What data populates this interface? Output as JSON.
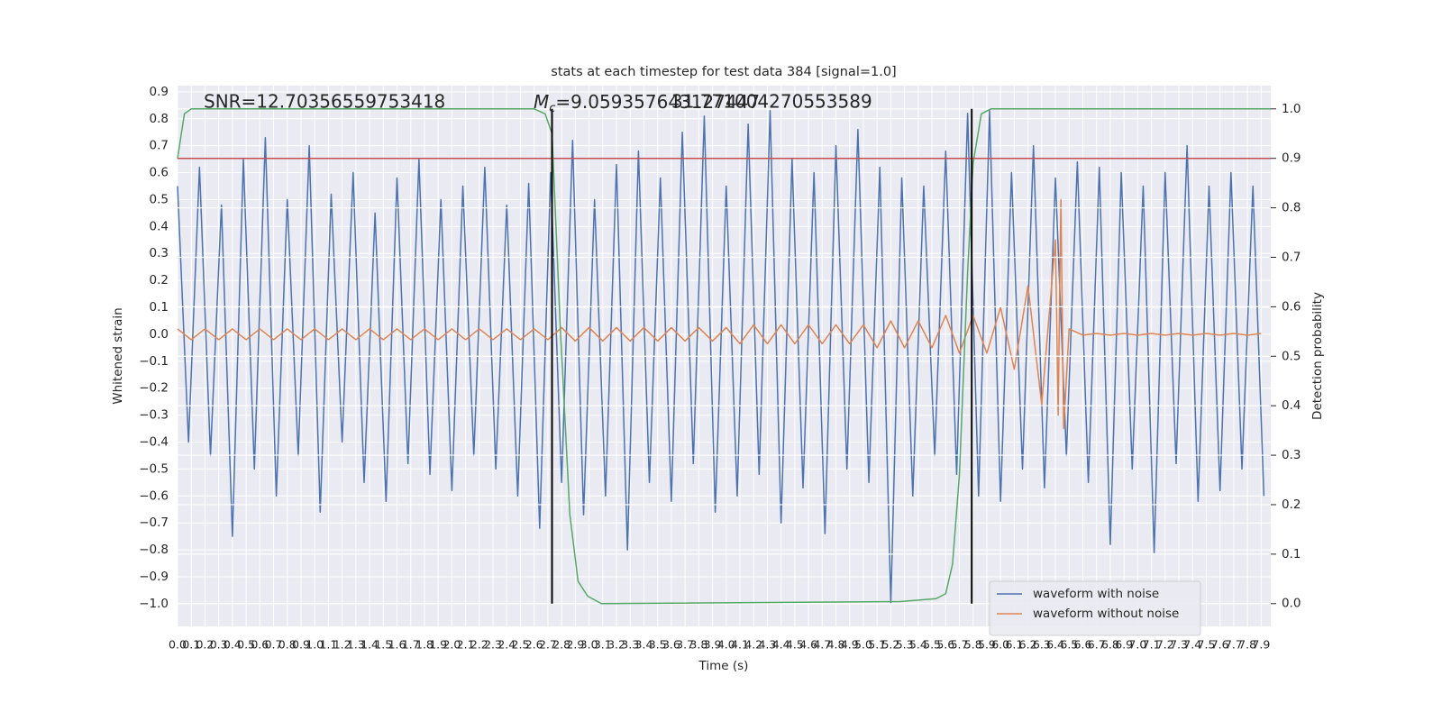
{
  "chart_data": {
    "type": "line",
    "title": "stats at each timestep for test data 384 [signal=1.0]",
    "x_label": "Time (s)",
    "y_label": "Whitened strain",
    "y2_label": "Detection probability",
    "annotations": {
      "snr": "SNR=12.70356559753418",
      "mc": {
        "symbol": "M",
        "subscript": "c",
        "text": "=9.059357643127447"
      },
      "other": "31.771004270553589"
    },
    "grid": true,
    "legend": "lower right",
    "xlim": [
      0,
      7.97
    ],
    "ylim": [
      -1.084,
      0.923
    ],
    "y2lim": [
      -0.046,
      1.047
    ],
    "xticks": [
      {
        "value": 0,
        "label": "0.0"
      },
      0.1,
      0.2,
      0.3,
      0.4,
      0.5,
      0.6,
      0.7,
      0.8,
      0.9,
      {
        "value": 1,
        "label": "1.0"
      },
      1.1,
      1.2,
      1.3,
      1.4,
      1.5,
      1.6,
      1.7,
      1.8,
      1.9,
      {
        "value": 2,
        "label": "2.0"
      },
      2.1,
      2.2,
      2.3,
      2.4,
      2.5,
      2.6,
      2.7,
      2.8,
      2.9,
      {
        "value": 3,
        "label": "3.0"
      },
      3.1,
      3.2,
      3.3,
      3.4,
      3.5,
      3.6,
      3.7,
      3.8,
      3.9,
      {
        "value": 4,
        "label": "4.0"
      },
      4.1,
      4.2,
      4.3,
      4.4,
      4.5,
      4.6,
      4.7,
      4.8,
      4.9,
      {
        "value": 5,
        "label": "5.0"
      },
      5.1,
      5.2,
      5.3,
      5.4,
      5.5,
      5.6,
      5.7,
      5.8,
      5.9,
      {
        "value": 6,
        "label": "6.0"
      },
      6.1,
      6.2,
      6.3,
      6.4,
      6.5,
      6.6,
      6.7,
      6.8,
      6.9,
      {
        "value": 7,
        "label": "7.0"
      },
      7.1,
      7.2,
      7.3,
      7.4,
      7.5,
      7.6,
      7.7,
      7.8,
      7.9
    ],
    "yticks": [
      {
        "value": -1.0,
        "label": "−1.0"
      },
      {
        "value": -0.9,
        "label": "−0.9"
      },
      {
        "value": -0.8,
        "label": "−0.8"
      },
      {
        "value": -0.7,
        "label": "−0.7"
      },
      {
        "value": -0.6,
        "label": "−0.6"
      },
      {
        "value": -0.5,
        "label": "−0.5"
      },
      {
        "value": -0.4,
        "label": "−0.4"
      },
      {
        "value": -0.3,
        "label": "−0.3"
      },
      {
        "value": -0.2,
        "label": "−0.2"
      },
      {
        "value": -0.1,
        "label": "−0.1"
      },
      {
        "value": 0,
        "label": "0.0"
      },
      0.1,
      0.2,
      0.3,
      0.4,
      0.5,
      0.6,
      0.7,
      0.8,
      0.9
    ],
    "y2ticks": [
      {
        "value": 0,
        "label": "0.0"
      },
      0.1,
      0.2,
      0.3,
      0.4,
      0.5,
      0.6,
      0.7,
      0.8,
      0.9,
      {
        "value": 1,
        "label": "1.0"
      }
    ],
    "series": [
      {
        "name": "waveform with noise",
        "color": "#4c72b0",
        "x": [
          0,
          0.08,
          0.16,
          0.24,
          0.32,
          0.4,
          0.48,
          0.56,
          0.64,
          0.72,
          0.8,
          0.88,
          0.96,
          1.04,
          1.12,
          1.2,
          1.28,
          1.36,
          1.44,
          1.52,
          1.6,
          1.68,
          1.76,
          1.84,
          1.92,
          2,
          2.08,
          2.16,
          2.24,
          2.32,
          2.4,
          2.48,
          2.56,
          2.64,
          2.72,
          2.8,
          2.88,
          2.96,
          3.04,
          3.12,
          3.2,
          3.28,
          3.36,
          3.44,
          3.52,
          3.6,
          3.68,
          3.76,
          3.84,
          3.92,
          4,
          4.08,
          4.16,
          4.24,
          4.32,
          4.4,
          4.48,
          4.56,
          4.64,
          4.72,
          4.8,
          4.88,
          4.96,
          5.04,
          5.12,
          5.2,
          5.28,
          5.36,
          5.44,
          5.52,
          5.6,
          5.68,
          5.76,
          5.84,
          5.92,
          6,
          6.08,
          6.16,
          6.24,
          6.32,
          6.4,
          6.48,
          6.56,
          6.64,
          6.72,
          6.8,
          6.88,
          6.96,
          7.04,
          7.12,
          7.2,
          7.28,
          7.36,
          7.44,
          7.52,
          7.6,
          7.68,
          7.76,
          7.84,
          7.92
        ],
        "values": [
          0.55,
          -0.4,
          0.62,
          -0.45,
          0.48,
          -0.75,
          0.65,
          -0.5,
          0.73,
          -0.6,
          0.5,
          -0.45,
          0.7,
          -0.66,
          0.52,
          -0.4,
          0.6,
          -0.55,
          0.45,
          -0.62,
          0.58,
          -0.48,
          0.65,
          -0.52,
          0.5,
          -0.58,
          0.55,
          -0.45,
          0.62,
          -0.5,
          0.48,
          -0.6,
          0.56,
          -0.72,
          0.6,
          -0.55,
          0.72,
          -0.67,
          0.5,
          -0.6,
          0.63,
          -0.8,
          0.68,
          -0.55,
          0.58,
          -0.62,
          0.75,
          -0.48,
          0.81,
          -0.66,
          0.55,
          -0.6,
          0.78,
          -0.52,
          0.83,
          -0.7,
          0.65,
          -0.57,
          0.6,
          -0.74,
          0.7,
          -0.5,
          0.76,
          -0.55,
          0.62,
          -1.0,
          0.58,
          -0.6,
          0.55,
          -0.45,
          0.68,
          -0.52,
          0.82,
          -0.6,
          0.83,
          -0.62,
          0.6,
          -0.5,
          0.7,
          -0.57,
          0.58,
          -0.45,
          0.64,
          -0.55,
          0.62,
          -0.78,
          0.6,
          -0.5,
          0.55,
          -0.81,
          0.6,
          -0.48,
          0.7,
          -0.62,
          0.55,
          -0.58,
          0.6,
          -0.5,
          0.55,
          -0.6
        ]
      },
      {
        "name": "waveform without noise",
        "color": "#dd8452",
        "x": [
          0,
          0.1,
          0.2,
          0.3,
          0.4,
          0.5,
          0.6,
          0.7,
          0.8,
          0.9,
          1,
          1.1,
          1.2,
          1.3,
          1.4,
          1.5,
          1.6,
          1.7,
          1.8,
          1.9,
          2,
          2.1,
          2.2,
          2.3,
          2.4,
          2.5,
          2.6,
          2.7,
          2.8,
          2.9,
          3,
          3.1,
          3.2,
          3.3,
          3.4,
          3.5,
          3.6,
          3.7,
          3.8,
          3.9,
          4,
          4.1,
          4.2,
          4.3,
          4.4,
          4.5,
          4.6,
          4.7,
          4.8,
          4.9,
          5,
          5.1,
          5.2,
          5.3,
          5.4,
          5.5,
          5.6,
          5.7,
          5.8,
          5.9,
          6,
          6.1,
          6.2,
          6.3,
          6.4,
          6.42,
          6.44,
          6.46,
          6.5,
          6.6,
          6.7,
          6.8,
          6.9,
          7,
          7.1,
          7.2,
          7.3,
          7.4,
          7.5,
          7.6,
          7.7,
          7.8,
          7.9
        ],
        "values": [
          0.02,
          -0.02,
          0.02,
          -0.02,
          0.02,
          -0.02,
          0.02,
          -0.02,
          0.02,
          -0.02,
          0.02,
          -0.02,
          0.02,
          -0.02,
          0.02,
          -0.02,
          0.02,
          -0.02,
          0.02,
          -0.02,
          0.02,
          -0.02,
          0.02,
          -0.02,
          0.02,
          -0.02,
          0.02,
          -0.02,
          0.025,
          -0.025,
          0.025,
          -0.025,
          0.025,
          -0.025,
          0.025,
          -0.025,
          0.025,
          -0.025,
          0.025,
          -0.025,
          0.025,
          -0.035,
          0.035,
          -0.035,
          0.035,
          -0.035,
          0.035,
          -0.035,
          0.035,
          -0.035,
          0.035,
          -0.05,
          0.05,
          -0.05,
          0.05,
          -0.05,
          0.07,
          -0.07,
          0.07,
          -0.07,
          0.1,
          -0.13,
          0.18,
          -0.26,
          0.35,
          -0.3,
          0.5,
          -0.35,
          0.02,
          -0.003,
          0.003,
          -0.003,
          0.003,
          -0.003,
          0.003,
          -0.003,
          0.003,
          -0.003,
          0.003,
          -0.003,
          0.003,
          -0.003,
          0.003
        ]
      },
      {
        "color": "#55a868",
        "axis": "y2",
        "x": [
          0,
          0.05,
          0.1,
          2.6,
          2.68,
          2.73,
          2.79,
          2.86,
          2.92,
          2.99,
          3.09,
          5.27,
          5.53,
          5.6,
          5.65,
          5.7,
          5.76,
          5.8,
          5.86,
          5.93,
          7.97
        ],
        "values": [
          0.9,
          0.99,
          1.0,
          1.0,
          0.99,
          0.95,
          0.56,
          0.18,
          0.045,
          0.015,
          0.0,
          0.004,
          0.01,
          0.02,
          0.08,
          0.26,
          0.67,
          0.89,
          0.99,
          1.0,
          1.0
        ]
      }
    ],
    "hlines": [
      {
        "value": 0.9,
        "axis": "y2",
        "color": "#c44e52"
      }
    ],
    "vlines": [
      {
        "x": 2.73,
        "y2": [
          0,
          1
        ],
        "color": "#000000"
      },
      {
        "x": 5.79,
        "y2": [
          0,
          1
        ],
        "color": "#000000"
      }
    ]
  }
}
